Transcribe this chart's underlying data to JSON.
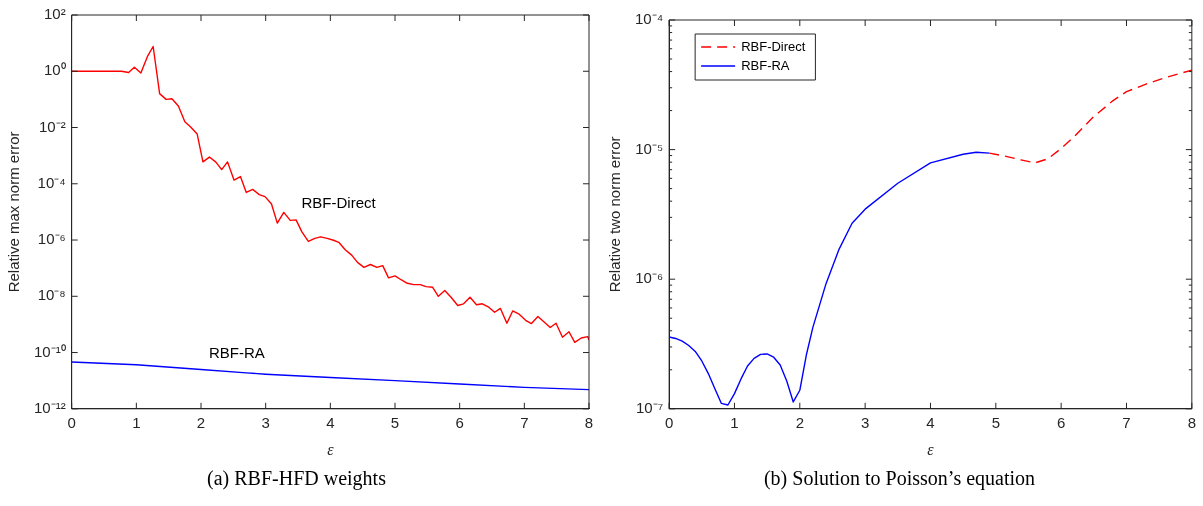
{
  "chart_data": [
    {
      "type": "line",
      "title": "(a) RBF-HFD weights",
      "xlabel": "ε",
      "ylabel": "Relative max norm error",
      "log": "y",
      "grid": false,
      "xlim": [
        0,
        8
      ],
      "xticks": [
        0,
        1,
        2,
        3,
        4,
        5,
        6,
        7,
        8
      ],
      "ylim": [
        1e-12,
        100
      ],
      "yticks": [
        {
          "value": 1e-12,
          "label": "10⁻¹²"
        },
        {
          "value": 1e-10,
          "label": "10⁻¹⁰"
        },
        {
          "value": 1e-08,
          "label": "10⁻⁸"
        },
        {
          "value": 1e-06,
          "label": "10⁻⁶"
        },
        {
          "value": 0.0001,
          "label": "10⁻⁴"
        },
        {
          "value": 0.01,
          "label": "10⁻²"
        },
        {
          "value": 1,
          "label": "10⁰"
        },
        {
          "value": 100,
          "label": "10²"
        }
      ],
      "series": [
        {
          "name": "RBF-Direct",
          "color": "#ff0000",
          "line_style": "solid",
          "x": [
            0,
            0.77,
            0.88,
            0.97,
            1.07,
            1.17,
            1.26,
            1.36,
            1.46,
            1.55,
            1.65,
            1.75,
            1.84,
            1.94,
            2.03,
            2.13,
            2.23,
            2.32,
            2.41,
            2.51,
            2.61,
            2.7,
            2.8,
            2.9,
            2.99,
            3.09,
            3.18,
            3.28,
            3.38,
            3.47,
            3.56,
            3.66,
            3.76,
            3.85,
            3.95,
            4.05,
            4.13,
            4.23,
            4.33,
            4.42,
            4.52,
            4.62,
            4.72,
            4.81,
            4.9,
            5.0,
            5.1,
            5.19,
            5.29,
            5.39,
            5.48,
            5.58,
            5.67,
            5.77,
            5.87,
            5.97,
            6.06,
            6.16,
            6.26,
            6.35,
            6.45,
            6.54,
            6.63,
            6.73,
            6.82,
            6.92,
            7.02,
            7.11,
            7.21,
            7.31,
            7.4,
            7.49,
            7.59,
            7.69,
            7.78,
            7.88,
            7.98,
            8.0
          ],
          "values": [
            1,
            1,
            0.9,
            1.4,
            0.87,
            3.3,
            7.6,
            0.16,
            0.1,
            0.105,
            0.058,
            0.016,
            0.0105,
            0.0059,
            0.0006,
            0.00089,
            0.00059,
            0.00032,
            0.0006,
            0.000135,
            0.00018,
            4.9e-05,
            6.3e-05,
            4.1e-05,
            3.5e-05,
            1.9e-05,
            4e-06,
            9.6e-06,
            5e-06,
            5.2e-06,
            1.95e-06,
            8.9e-07,
            1.15e-06,
            1.3e-06,
            1.15e-06,
            9.8e-07,
            8.3e-07,
            4.5e-07,
            2.9e-07,
            1.6e-07,
            1.07e-07,
            1.35e-07,
            1.07e-07,
            1.23e-07,
            4.5e-08,
            5.3e-08,
            3.8e-08,
            2.9e-08,
            2.6e-08,
            2.6e-08,
            2.2e-08,
            2.1e-08,
            1e-08,
            1.6e-08,
            9.1e-09,
            4.7e-09,
            5.4e-09,
            9.3e-09,
            5e-09,
            5.4e-09,
            4.1e-09,
            2.7e-09,
            3.7e-09,
            1.1e-09,
            3e-09,
            2.3e-09,
            1.4e-09,
            1.07e-09,
            1.9e-09,
            1.2e-09,
            7.8e-10,
            1.1e-09,
            3.5e-10,
            5.5e-10,
            2.3e-10,
            3.3e-10,
            3.7e-10,
            2.8e-10
          ]
        },
        {
          "name": "RBF-RA",
          "color": "#0000ff",
          "line_style": "solid",
          "x": [
            0,
            1,
            2,
            2.7,
            3,
            4,
            5,
            6,
            7,
            8
          ],
          "values": [
            4.6e-11,
            3.7e-11,
            2.5e-11,
            1.9e-11,
            1.7e-11,
            1.3e-11,
            1e-11,
            7.6e-12,
            5.8e-12,
            4.8e-12
          ]
        }
      ]
    },
    {
      "type": "line",
      "title": "(b) Solution to Poisson’s equation",
      "xlabel": "ε",
      "ylabel": "Relative two norm error",
      "log": "y",
      "grid": false,
      "legend": "top left",
      "xlim": [
        0,
        8
      ],
      "xticks": [
        0,
        1,
        2,
        3,
        4,
        5,
        6,
        7,
        8
      ],
      "ylim": [
        1e-07,
        0.0001
      ],
      "yticks": [
        {
          "value": 1e-07,
          "label": "10⁻⁷"
        },
        {
          "value": 2e-07,
          "label": null
        },
        {
          "value": 3e-07,
          "label": null
        },
        {
          "value": 4e-07,
          "label": null
        },
        {
          "value": 5e-07,
          "label": null
        },
        {
          "value": 6e-07,
          "label": null
        },
        {
          "value": 7e-07,
          "label": null
        },
        {
          "value": 8e-07,
          "label": null
        },
        {
          "value": 9e-07,
          "label": null
        },
        {
          "value": 1e-06,
          "label": "10⁻⁶"
        },
        {
          "value": 2e-06,
          "label": null
        },
        {
          "value": 3e-06,
          "label": null
        },
        {
          "value": 4e-06,
          "label": null
        },
        {
          "value": 5e-06,
          "label": null
        },
        {
          "value": 6e-06,
          "label": null
        },
        {
          "value": 7e-06,
          "label": null
        },
        {
          "value": 8e-06,
          "label": null
        },
        {
          "value": 9e-06,
          "label": null
        },
        {
          "value": 1e-05,
          "label": "10⁻⁵"
        },
        {
          "value": 2e-05,
          "label": null
        },
        {
          "value": 3e-05,
          "label": null
        },
        {
          "value": 4e-05,
          "label": null
        },
        {
          "value": 5e-05,
          "label": null
        },
        {
          "value": 6e-05,
          "label": null
        },
        {
          "value": 7e-05,
          "label": null
        },
        {
          "value": 8e-05,
          "label": null
        },
        {
          "value": 9e-05,
          "label": null
        },
        {
          "value": 0.0001,
          "label": "10⁻⁴"
        }
      ],
      "series": [
        {
          "name": "RBF-Direct",
          "color": "#ff0000",
          "line_style": "dashed",
          "x": [
            4.9,
            5.14,
            5.4,
            5.6,
            5.8,
            6.0,
            6.2,
            6.5,
            6.8,
            7.0,
            7.3,
            7.6,
            8.0
          ],
          "values": [
            9.4e-06,
            8.9e-06,
            8.3e-06,
            7.9e-06,
            8.5e-06,
            1.02e-05,
            1.26e-05,
            1.8e-05,
            2.4e-05,
            2.8e-05,
            3.2e-05,
            3.6e-05,
            4.1e-05
          ]
        },
        {
          "name": "RBF-RA",
          "color": "#0000ff",
          "line_style": "solid",
          "x": [
            0,
            0.1,
            0.2,
            0.3,
            0.4,
            0.5,
            0.6,
            0.7,
            0.8,
            0.9,
            1.0,
            1.1,
            1.2,
            1.3,
            1.4,
            1.5,
            1.6,
            1.7,
            1.8,
            1.9,
            2.0,
            2.1,
            2.2,
            2.4,
            2.6,
            2.8,
            3.0,
            3.5,
            4.0,
            4.5,
            4.7,
            4.9
          ],
          "values": [
            3.58e-07,
            3.49e-07,
            3.33e-07,
            3.08e-07,
            2.77e-07,
            2.34e-07,
            1.87e-07,
            1.43e-07,
            1.1e-07,
            1.07e-07,
            1.31e-07,
            1.7e-07,
            2.14e-07,
            2.45e-07,
            2.63e-07,
            2.65e-07,
            2.5e-07,
            2.18e-07,
            1.64e-07,
            1.13e-07,
            1.39e-07,
            2.6e-07,
            4.25e-07,
            9.2e-07,
            1.7e-06,
            2.7e-06,
            3.47e-06,
            5.5e-06,
            7.9e-06,
            9.2e-06,
            9.55e-06,
            9.4e-06
          ]
        }
      ]
    }
  ]
}
